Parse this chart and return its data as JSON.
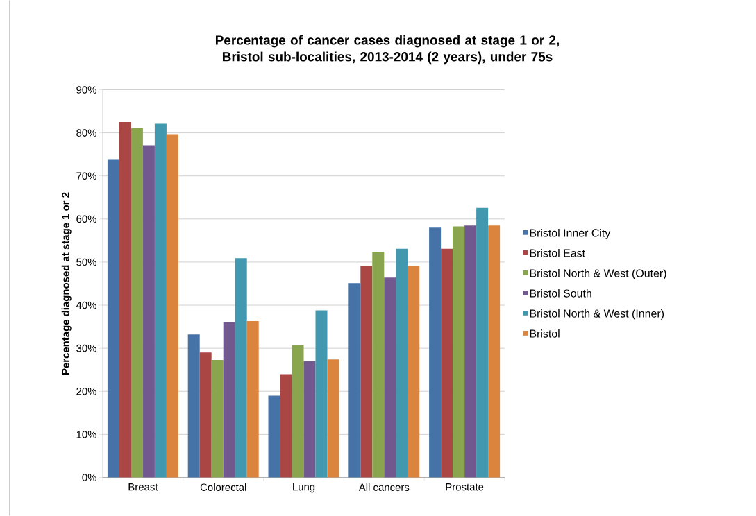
{
  "chart_data": {
    "type": "bar",
    "title": "Percentage of cancer cases diagnosed at stage 1 or 2, Bristol sub-localities, 2013-2014 (2 years), under 75s",
    "ylabel": "Percentage diagnosed at stage 1 or 2",
    "categories": [
      "Breast",
      "Colorectal",
      "Lung",
      "All cancers",
      "Prostate"
    ],
    "series": [
      {
        "name": "Bristol Inner City",
        "color": "#4572a7",
        "values": [
          73.9,
          33.2,
          19.0,
          45.1,
          58.0
        ]
      },
      {
        "name": "Bristol East",
        "color": "#aa4643",
        "values": [
          82.5,
          29.0,
          24.0,
          49.1,
          53.1
        ]
      },
      {
        "name": "Bristol North & West (Outer)",
        "color": "#89a54e",
        "values": [
          81.1,
          27.3,
          30.7,
          52.4,
          58.3
        ]
      },
      {
        "name": "Bristol South",
        "color": "#71588f",
        "values": [
          77.1,
          36.1,
          27.0,
          46.4,
          58.5
        ]
      },
      {
        "name": "Bristol North & West (Inner)",
        "color": "#4198af",
        "values": [
          82.1,
          50.9,
          38.8,
          53.1,
          62.6
        ]
      },
      {
        "name": "Bristol",
        "color": "#db843d",
        "values": [
          79.7,
          36.3,
          27.4,
          49.1,
          58.5
        ]
      }
    ],
    "ylim": [
      0,
      90
    ],
    "yticks": [
      {
        "value": 0,
        "label": "0%"
      },
      {
        "value": 10,
        "label": "10%"
      },
      {
        "value": 20,
        "label": "20%"
      },
      {
        "value": 30,
        "label": "30%"
      },
      {
        "value": 40,
        "label": "40%"
      },
      {
        "value": 50,
        "label": "50%"
      },
      {
        "value": 60,
        "label": "60%"
      },
      {
        "value": 70,
        "label": "70%"
      },
      {
        "value": 80,
        "label": "80%"
      },
      {
        "value": 90,
        "label": "90%"
      }
    ],
    "grid": "y",
    "legend": "right"
  }
}
